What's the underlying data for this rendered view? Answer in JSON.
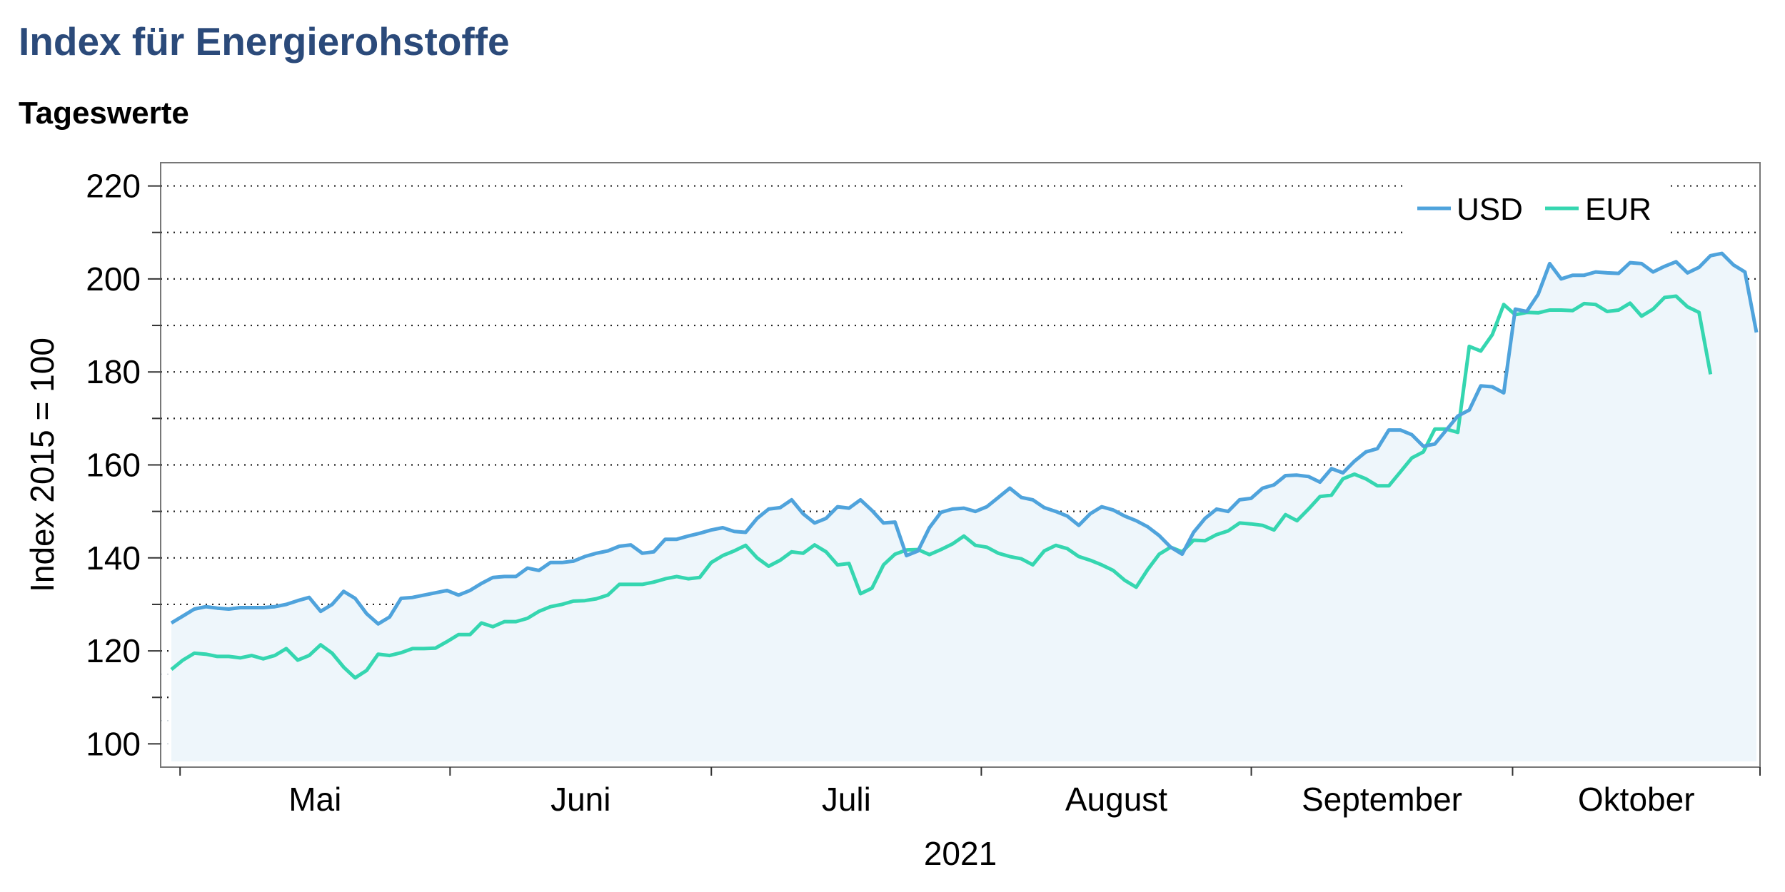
{
  "colors": {
    "title": "#2b4a7a",
    "usd": "#4fa3dc",
    "eur": "#35d6b0",
    "area": "#eef6fb"
  },
  "chart_data": {
    "type": "line",
    "title": "Index für Energierohstoffe",
    "subtitle": "Tageswerte",
    "ylabel": "Index 2015 = 100",
    "xlabel": "2021",
    "ylim": [
      95,
      225
    ],
    "yticks": [
      100,
      120,
      140,
      160,
      180,
      200,
      220
    ],
    "y_gridlines": [
      110,
      120,
      130,
      140,
      150,
      160,
      170,
      180,
      190,
      200,
      210,
      220
    ],
    "month_labels": [
      "Mai",
      "Juni",
      "Juli",
      "August",
      "September",
      "Oktober"
    ],
    "month_starts": [
      "2021-05-01",
      "2021-06-01",
      "2021-07-01",
      "2021-08-01",
      "2021-09-01",
      "2021-10-01",
      "2021-11-01"
    ],
    "x_start": "2021-04-30",
    "x_end": "2021-10-29",
    "legend_position": "top-right",
    "grid": true,
    "series": [
      {
        "name": "USD",
        "values": [
          126.0,
          127.5,
          129.0,
          129.5,
          129.2,
          129.0,
          129.3,
          129.3,
          129.3,
          129.5,
          130.0,
          130.8,
          131.5,
          128.5,
          130.0,
          132.8,
          131.3,
          128.0,
          125.8,
          127.3,
          131.3,
          131.5,
          132.0,
          132.5,
          133.0,
          132.0,
          133.0,
          134.5,
          135.8,
          136.0,
          136.0,
          137.8,
          137.3,
          139.0,
          139.0,
          139.3,
          140.3,
          141.0,
          141.5,
          142.5,
          142.8,
          141.0,
          141.3,
          144.0,
          144.0,
          144.7,
          145.3,
          146.0,
          146.5,
          145.7,
          145.5,
          148.5,
          150.5,
          150.8,
          152.5,
          149.5,
          147.5,
          148.5,
          151.0,
          150.7,
          152.5,
          150.2,
          147.5,
          147.7,
          140.5,
          141.5,
          146.5,
          149.8,
          150.5,
          150.7,
          150.0,
          151.0,
          153.0,
          155.0,
          153.0,
          152.5,
          150.8,
          150.0,
          149.0,
          147.0,
          149.5,
          151.0,
          150.3,
          149.0,
          148.0,
          146.7,
          144.8,
          142.3,
          140.8,
          145.5,
          148.5,
          150.5,
          150.0,
          152.5,
          152.8,
          155.0,
          155.7,
          157.7,
          157.8,
          157.5,
          156.3,
          159.2,
          158.3,
          160.8,
          162.8,
          163.5,
          167.5,
          167.5,
          166.5,
          164.0,
          164.5,
          167.5,
          170.5,
          171.8,
          177.0,
          176.8,
          175.5,
          193.5,
          193.0,
          196.7,
          203.3,
          200.0,
          200.8,
          200.8,
          201.5,
          201.3,
          201.2,
          203.5,
          203.3,
          201.5,
          202.7,
          203.7,
          201.3,
          202.5,
          205.0,
          205.5,
          203.0,
          201.5,
          188.5
        ]
      },
      {
        "name": "EUR",
        "values": [
          116.0,
          118.0,
          119.5,
          119.3,
          118.8,
          118.8,
          118.5,
          119.0,
          118.3,
          119.0,
          120.5,
          118.0,
          119.0,
          121.3,
          119.5,
          116.5,
          114.2,
          115.8,
          119.3,
          119.0,
          119.6,
          120.5,
          120.5,
          120.6,
          122.0,
          123.5,
          123.5,
          126.0,
          125.2,
          126.3,
          126.3,
          127.0,
          128.5,
          129.5,
          130.0,
          130.7,
          130.8,
          131.2,
          132.0,
          134.3,
          134.3,
          134.3,
          134.8,
          135.5,
          136.0,
          135.5,
          135.8,
          139.0,
          140.5,
          141.5,
          142.7,
          140.0,
          138.2,
          139.5,
          141.3,
          141.0,
          142.8,
          141.3,
          138.5,
          138.8,
          132.3,
          133.5,
          138.5,
          140.8,
          141.7,
          141.8,
          140.7,
          141.8,
          143.0,
          144.7,
          142.7,
          142.3,
          141.0,
          140.3,
          139.8,
          138.5,
          141.5,
          142.7,
          142.0,
          140.3,
          139.5,
          138.5,
          137.3,
          135.2,
          133.7,
          137.5,
          140.8,
          142.3,
          141.3,
          143.8,
          143.7,
          145.0,
          145.8,
          147.5,
          147.3,
          147.0,
          146.0,
          149.3,
          148.0,
          150.5,
          153.2,
          153.5,
          157.0,
          158.0,
          157.0,
          155.5,
          155.5,
          158.5,
          161.5,
          162.8,
          167.7,
          167.7,
          167.0,
          185.5,
          184.5,
          188.0,
          194.5,
          192.3,
          192.8,
          192.7,
          193.3,
          193.3,
          193.2,
          194.7,
          194.5,
          193.0,
          193.3,
          194.8,
          192.0,
          193.5,
          196.0,
          196.3,
          194.0,
          192.8,
          179.5
        ]
      }
    ]
  }
}
